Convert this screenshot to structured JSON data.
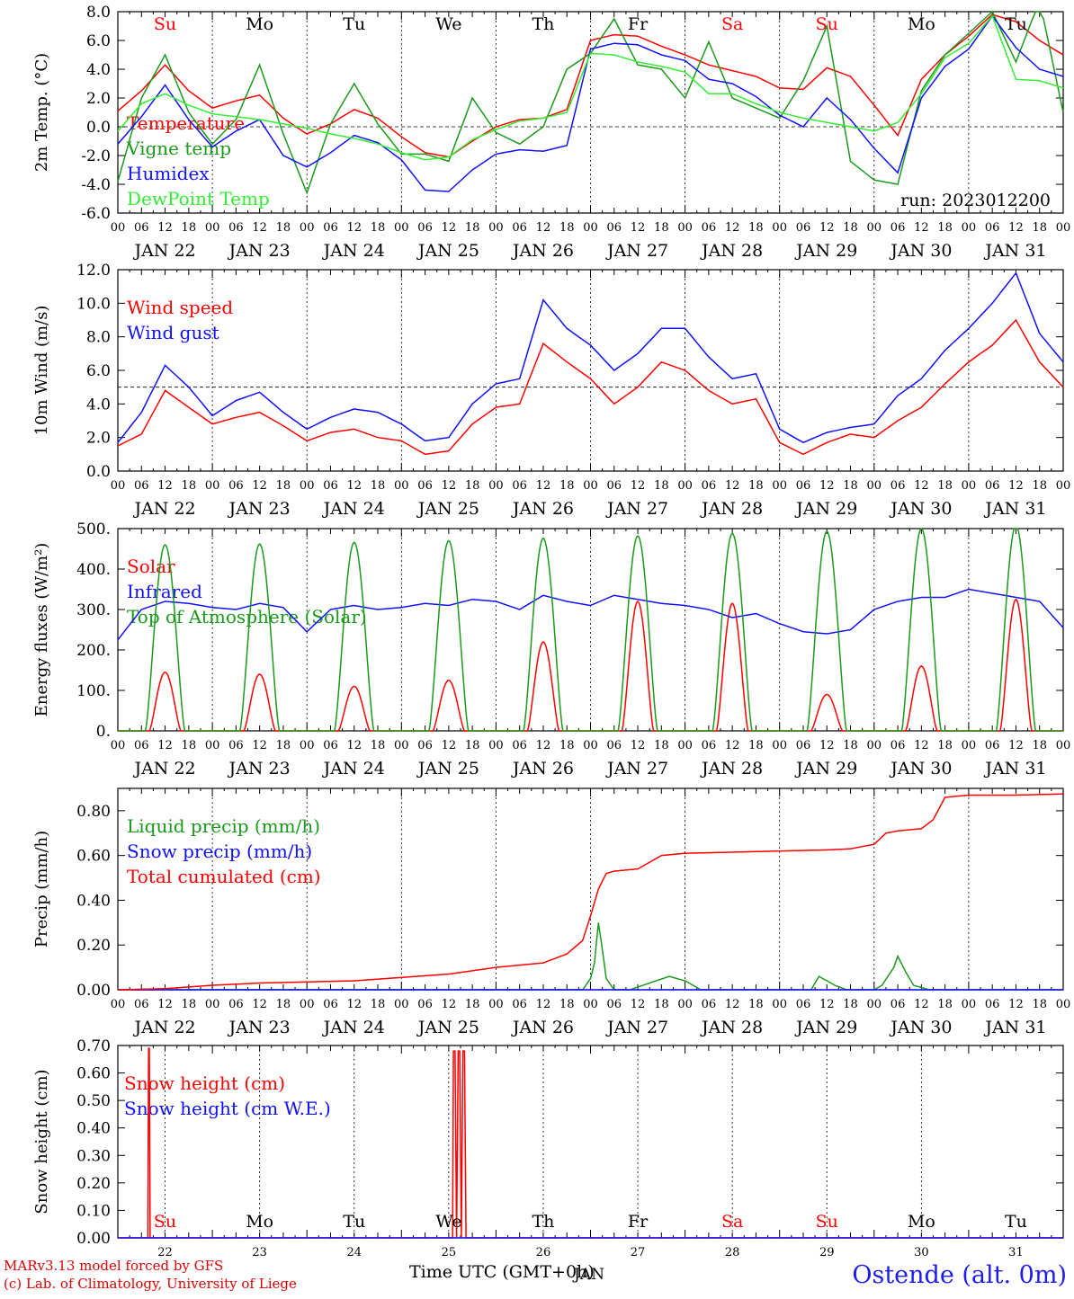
{
  "colors": {
    "red": "#ff0000",
    "green": "#1a9a1a",
    "blue": "#1010ff",
    "lightgreen": "#33ee33",
    "black": "#000000"
  },
  "day_letters": [
    "Su",
    "Mo",
    "Tu",
    "We",
    "Th",
    "Fr",
    "Sa",
    "Su",
    "Mo",
    "Tu"
  ],
  "day_letter_colors": [
    "red",
    "black",
    "black",
    "black",
    "black",
    "black",
    "red",
    "red",
    "black",
    "black"
  ],
  "date_labels": [
    "JAN 22",
    "JAN 23",
    "JAN 24",
    "JAN 25",
    "JAN 26",
    "JAN 27",
    "JAN 28",
    "JAN 29",
    "JAN 30",
    "JAN 31"
  ],
  "day_numbers": [
    "22",
    "23",
    "24",
    "25",
    "26",
    "27",
    "28",
    "29",
    "30",
    "31"
  ],
  "hour_ticks": [
    "00",
    "06",
    "12",
    "18"
  ],
  "x_title": "Time UTC (GMT+0h)",
  "x_title_overprint": "JAN",
  "credits": [
    "MARv3.13 model forced by GFS",
    "(c) Lab. of Climatology, University of Liege"
  ],
  "station": "Ostende (alt. 0m)",
  "chart_data": [
    {
      "type": "line",
      "ylabel": "2m Temp. (°C)",
      "ylim": [
        -6,
        8
      ],
      "yticks": [
        "-6.0",
        "-4.0",
        "-2.0",
        "0.0",
        "2.0",
        "4.0",
        "6.0",
        "8.0"
      ],
      "ytick_values": [
        -6,
        -4,
        -2,
        0,
        2,
        4,
        6,
        8
      ],
      "ref_line": 0,
      "annotation": "run: 2023012200",
      "x_hours": [
        0,
        6,
        12,
        18,
        24,
        30,
        36,
        42,
        48,
        54,
        60,
        66,
        72,
        78,
        84,
        90,
        96,
        102,
        108,
        114,
        120,
        126,
        132,
        138,
        144,
        150,
        156,
        162,
        168,
        174,
        180,
        186,
        192,
        198,
        204,
        210,
        216,
        222,
        228,
        234,
        240
      ],
      "series": [
        {
          "name": "Temperature",
          "color": "red",
          "values": [
            1.1,
            2.5,
            4.3,
            2.5,
            1.3,
            1.8,
            2.2,
            0.6,
            -0.5,
            0.2,
            1.2,
            0.6,
            -0.7,
            -1.8,
            -2.1,
            -1.0,
            0.0,
            0.5,
            0.6,
            1.2,
            6.0,
            6.4,
            6.3,
            5.6,
            5.0,
            4.3,
            3.9,
            3.5,
            2.7,
            2.6,
            4.1,
            3.5,
            1.5,
            -0.6,
            3.3,
            5.0,
            6.3,
            7.8,
            7.3,
            6.0,
            5.0
          ]
        },
        {
          "name": "Vigne temp",
          "color": "green",
          "values": [
            -3.8,
            2.0,
            5.0,
            1.0,
            -1.2,
            0.5,
            4.3,
            -0.5,
            -4.6,
            0.2,
            3.0,
            0.2,
            -1.9,
            -1.9,
            -2.4,
            2.0,
            -0.4,
            -1.2,
            0.0,
            4.0,
            5.1,
            7.5,
            4.3,
            4.0,
            2.0,
            5.9,
            2.0,
            1.3,
            0.6,
            3.2,
            7.0,
            -2.4,
            -3.7,
            -4.0,
            2.5,
            5.0,
            6.5,
            8.0,
            4.5,
            8.8,
            1.0
          ]
        },
        {
          "name": "Humidex",
          "color": "blue",
          "values": [
            -1.2,
            0.7,
            2.9,
            0.5,
            -1.4,
            -0.3,
            0.5,
            -2.0,
            -2.8,
            -1.8,
            -0.6,
            -1.1,
            -2.3,
            -4.4,
            -4.5,
            -3.0,
            -1.9,
            -1.6,
            -1.7,
            -1.3,
            5.4,
            5.8,
            5.7,
            5.0,
            4.6,
            3.3,
            3.0,
            2.1,
            0.8,
            0.0,
            2.0,
            0.5,
            -1.5,
            -3.2,
            2.0,
            4.2,
            5.4,
            7.7,
            5.5,
            4.0,
            3.5
          ]
        },
        {
          "name": "DewPoint Temp",
          "color": "lightgreen",
          "values": [
            -0.3,
            1.6,
            2.3,
            1.5,
            0.9,
            0.7,
            0.5,
            0.2,
            -0.1,
            -0.5,
            -0.8,
            -1.2,
            -1.8,
            -2.3,
            -2.1,
            -0.9,
            -0.2,
            0.4,
            0.6,
            1.0,
            5.1,
            5.0,
            4.5,
            4.2,
            3.8,
            2.3,
            2.3,
            1.6,
            1.0,
            0.6,
            0.3,
            0.0,
            -0.3,
            0.3,
            2.3,
            4.8,
            5.8,
            7.7,
            3.3,
            3.2,
            2.7
          ]
        }
      ]
    },
    {
      "type": "line",
      "ylabel": "10m Wind (m/s)",
      "ylim": [
        0,
        12
      ],
      "yticks": [
        "0.0",
        "2.0",
        "4.0",
        "6.0",
        "8.0",
        "10.0",
        "12.0"
      ],
      "ytick_values": [
        0,
        2,
        4,
        6,
        8,
        10,
        12
      ],
      "ref_line": 5,
      "x_hours": [
        0,
        6,
        12,
        18,
        24,
        30,
        36,
        42,
        48,
        54,
        60,
        66,
        72,
        78,
        84,
        90,
        96,
        102,
        108,
        114,
        120,
        126,
        132,
        138,
        144,
        150,
        156,
        162,
        168,
        174,
        180,
        186,
        192,
        198,
        204,
        210,
        216,
        222,
        228,
        234,
        240
      ],
      "series": [
        {
          "name": "Wind speed",
          "color": "red",
          "values": [
            1.5,
            2.2,
            4.8,
            3.8,
            2.8,
            3.2,
            3.5,
            2.7,
            1.8,
            2.3,
            2.5,
            2.0,
            1.8,
            1.0,
            1.2,
            2.8,
            3.8,
            4.0,
            7.6,
            6.5,
            5.5,
            4.0,
            5.0,
            6.5,
            6.0,
            4.8,
            4.0,
            4.3,
            1.7,
            1.0,
            1.7,
            2.2,
            2.0,
            3.0,
            3.8,
            5.2,
            6.5,
            7.5,
            9.0,
            6.5,
            5.0
          ]
        },
        {
          "name": "Wind gust",
          "color": "blue",
          "values": [
            1.7,
            3.5,
            6.3,
            5.0,
            3.3,
            4.2,
            4.7,
            3.5,
            2.5,
            3.2,
            3.7,
            3.5,
            2.8,
            1.8,
            2.0,
            4.0,
            5.2,
            5.5,
            10.2,
            8.5,
            7.5,
            6.0,
            7.0,
            8.5,
            8.5,
            6.8,
            5.5,
            5.8,
            2.5,
            1.7,
            2.3,
            2.6,
            2.8,
            4.5,
            5.5,
            7.2,
            8.5,
            10.0,
            11.8,
            8.2,
            6.5
          ]
        }
      ]
    },
    {
      "type": "line",
      "ylabel": "Energy fluxes (W/m²)",
      "ylim": [
        0,
        500
      ],
      "yticks": [
        "0.",
        "100.",
        "200.",
        "300.",
        "400.",
        "500."
      ],
      "ytick_values": [
        0,
        100,
        200,
        300,
        400,
        500
      ],
      "daily_peak_hour": 12,
      "series": [
        {
          "name": "Solar",
          "color": "red",
          "daily_peaks": [
            145,
            140,
            110,
            125,
            220,
            320,
            315,
            90,
            160,
            325
          ]
        },
        {
          "name": "Infrared",
          "color": "blue",
          "x_hours": [
            0,
            6,
            12,
            18,
            24,
            30,
            36,
            42,
            48,
            54,
            60,
            66,
            72,
            78,
            84,
            90,
            96,
            102,
            108,
            114,
            120,
            126,
            132,
            138,
            144,
            150,
            156,
            162,
            168,
            174,
            180,
            186,
            192,
            198,
            204,
            210,
            216,
            222,
            228,
            234,
            240
          ],
          "values": [
            225,
            300,
            320,
            315,
            305,
            300,
            315,
            305,
            245,
            300,
            310,
            300,
            305,
            315,
            310,
            325,
            320,
            300,
            335,
            320,
            310,
            335,
            325,
            315,
            310,
            300,
            280,
            290,
            265,
            245,
            240,
            250,
            300,
            320,
            330,
            330,
            350,
            340,
            330,
            320,
            255
          ]
        },
        {
          "name": "Top of Atmosphere (Solar)",
          "color": "green",
          "daily_peaks": [
            460,
            462,
            466,
            470,
            476,
            482,
            488,
            493,
            500,
            508
          ]
        }
      ]
    },
    {
      "type": "line",
      "ylabel": "Precip (mm/h)",
      "ylim": [
        0,
        0.9
      ],
      "yticks": [
        "0.00",
        "0.20",
        "0.40",
        "0.60",
        "0.80"
      ],
      "ytick_values": [
        0,
        0.2,
        0.4,
        0.6,
        0.8
      ],
      "series": [
        {
          "name": "Liquid precip (mm/h)",
          "color": "green",
          "x_hours": [
            0,
            100,
            108,
            114,
            118,
            120,
            121,
            122,
            123,
            124,
            126,
            130,
            135,
            140,
            144,
            148,
            150,
            160,
            170,
            176,
            178,
            182,
            185,
            192,
            194,
            197,
            198,
            200,
            202,
            206,
            210,
            215,
            240
          ],
          "values": [
            0,
            0,
            0,
            0,
            0,
            0.05,
            0.12,
            0.3,
            0.18,
            0.05,
            0,
            0,
            0.03,
            0.06,
            0.04,
            0,
            0,
            0,
            0,
            0,
            0.06,
            0.02,
            0,
            0,
            0.02,
            0.1,
            0.15,
            0.08,
            0.02,
            0,
            0,
            0,
            0
          ]
        },
        {
          "name": "Snow precip (mm/h)",
          "color": "blue",
          "x_hours": [
            0,
            240
          ],
          "values": [
            0,
            0
          ]
        },
        {
          "name": "Total cumulated (cm)",
          "color": "red",
          "x_hours": [
            0,
            12,
            24,
            36,
            48,
            60,
            72,
            84,
            96,
            108,
            114,
            118,
            120,
            122,
            124,
            126,
            132,
            138,
            144,
            156,
            168,
            180,
            186,
            192,
            195,
            198,
            204,
            207,
            210,
            216,
            228,
            240
          ],
          "values": [
            0,
            0.005,
            0.02,
            0.03,
            0.035,
            0.04,
            0.055,
            0.07,
            0.1,
            0.12,
            0.16,
            0.22,
            0.33,
            0.45,
            0.52,
            0.53,
            0.54,
            0.6,
            0.61,
            0.615,
            0.62,
            0.625,
            0.63,
            0.65,
            0.7,
            0.71,
            0.72,
            0.76,
            0.86,
            0.87,
            0.87,
            0.875
          ]
        }
      ]
    },
    {
      "type": "line",
      "ylabel": "Snow height (cm)",
      "ylim": [
        0,
        0.7
      ],
      "yticks": [
        "0.00",
        "0.10",
        "0.20",
        "0.30",
        "0.40",
        "0.50",
        "0.60",
        "0.70"
      ],
      "ytick_values": [
        0,
        0.1,
        0.2,
        0.3,
        0.4,
        0.5,
        0.6,
        0.7
      ],
      "series": [
        {
          "name": "Snow height (cm)",
          "color": "red",
          "x_hours": [
            0,
            7.6,
            7.8,
            8.0,
            8.2,
            85,
            85.2,
            85.6,
            86.0,
            86.4,
            86.8,
            87.2,
            87.6,
            88.0,
            88.4,
            240
          ],
          "values": [
            0,
            0,
            0.69,
            0.69,
            0,
            0,
            0.68,
            0.68,
            0,
            0.68,
            0.68,
            0,
            0.68,
            0.68,
            0,
            0
          ]
        },
        {
          "name": "Snow height (cm W.E.)",
          "color": "blue",
          "x_hours": [
            0,
            240
          ],
          "values": [
            0,
            0
          ]
        }
      ]
    }
  ]
}
